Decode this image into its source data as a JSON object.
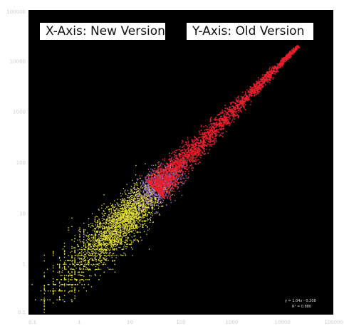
{
  "chart_data": {
    "type": "scatter",
    "title": "",
    "xlabel": "X-Axis: New Version",
    "ylabel": "Y-Axis: Old Version",
    "x_scale": "log",
    "y_scale": "log",
    "xlim": [
      0.1,
      100000
    ],
    "ylim": [
      0.1,
      100000
    ],
    "x_ticks": [
      "0.1",
      "1",
      "10",
      "100",
      "1000",
      "10000",
      "100000"
    ],
    "y_ticks": [
      "0.1",
      "1",
      "10",
      "100",
      "1000",
      "10000",
      "100000"
    ],
    "grid": false,
    "background": "#000000",
    "series": [
      {
        "color": "#e8e23a",
        "description_x_range": [
          0.2,
          200
        ],
        "description_y_range": [
          0.15,
          200
        ],
        "center": [
          8,
          8
        ],
        "spread_decades": 0.75
      },
      {
        "color": "#9a6fd0",
        "center": [
          40,
          40
        ],
        "spread_decades": 0.35
      },
      {
        "color": "#e8202e",
        "center": [
          300,
          300
        ],
        "extent": [
          [
            30,
            30
          ],
          [
            20000,
            20000
          ]
        ]
      }
    ],
    "annotation_lines": [
      "y = 1.04x - 0.208",
      "R² = 0.880"
    ]
  }
}
